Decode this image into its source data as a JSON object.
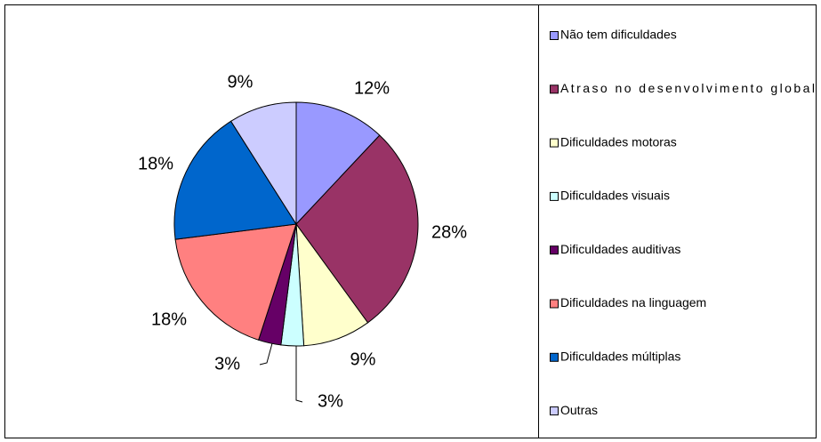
{
  "chart_data": {
    "type": "pie",
    "categories": [
      "Não tem dificuldades",
      "Atraso no desenvolvimento global",
      "Dificuldades motoras",
      "Dificuldades visuais",
      "Dificuldades auditivas",
      "Dificuldades na linguagem",
      "Dificuldades múltiplas",
      "Outras"
    ],
    "values": [
      12,
      28,
      9,
      3,
      3,
      18,
      18,
      9
    ],
    "value_labels": [
      "12%",
      "28%",
      "9%",
      "3%",
      "3%",
      "18%",
      "18%",
      "9%"
    ],
    "colors": [
      "#9999ff",
      "#993366",
      "#ffffcc",
      "#ccffff",
      "#660066",
      "#ff8080",
      "#0066cc",
      "#ccccff"
    ],
    "legend": "right"
  }
}
